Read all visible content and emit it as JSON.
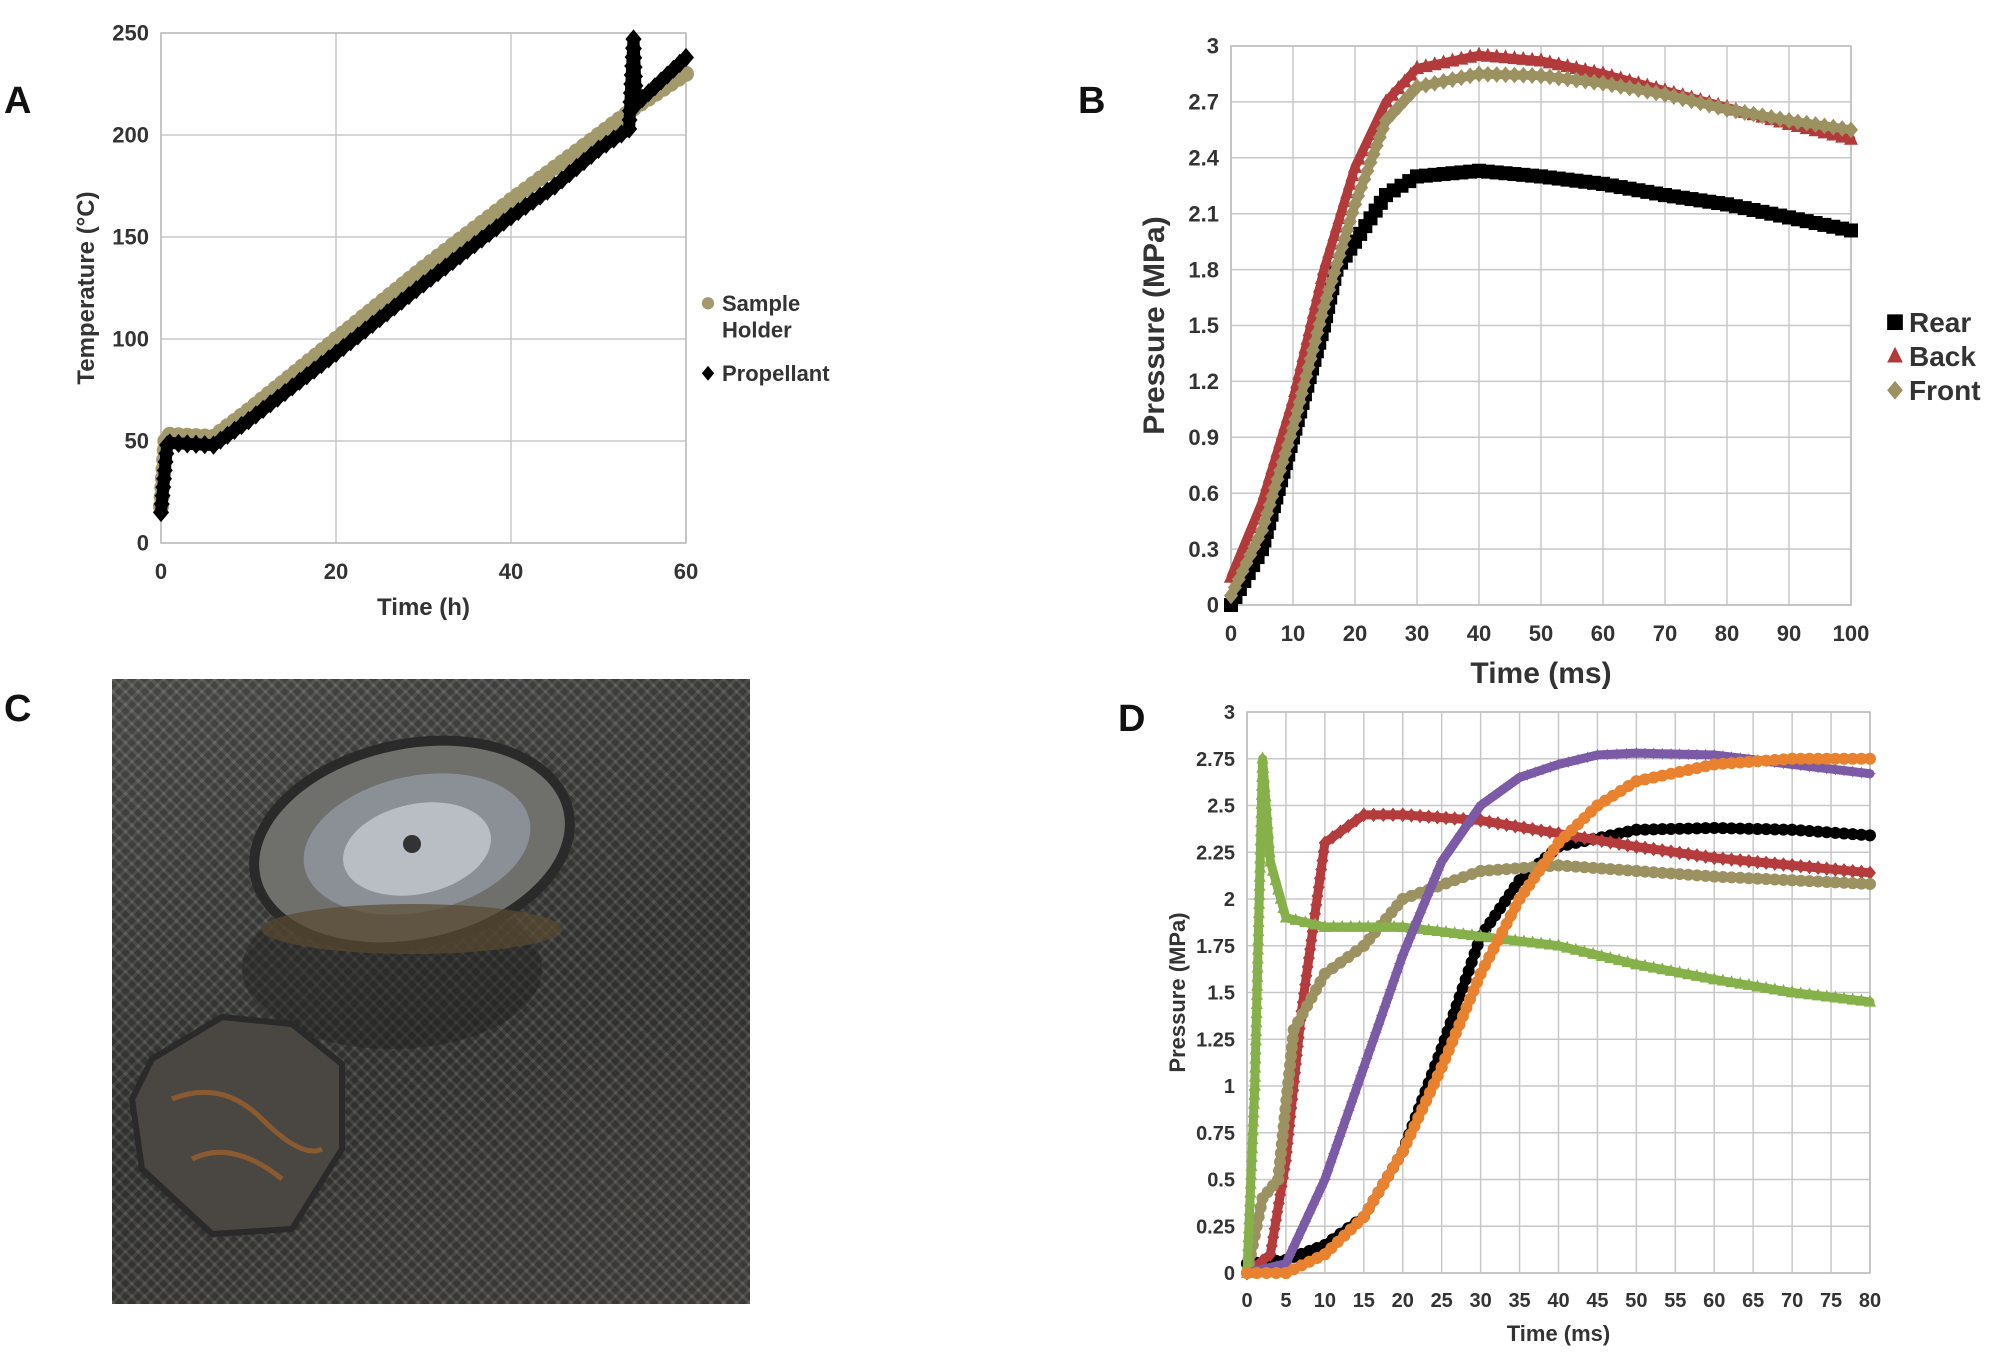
{
  "panels": {
    "a": "A",
    "b": "B",
    "c": "C",
    "d": "D"
  },
  "chart_data": [
    {
      "id": "A",
      "type": "scatter",
      "xlabel": "Time (h)",
      "ylabel": "Temperature (°C)",
      "xlim": [
        0,
        60
      ],
      "ylim": [
        0,
        250
      ],
      "xticks": [
        0,
        20,
        40,
        60
      ],
      "yticks": [
        0,
        50,
        100,
        150,
        200,
        250
      ],
      "grid": true,
      "legend": "right",
      "series": [
        {
          "name": "Sample Holder",
          "legend_lines": [
            "Sample",
            "Holder"
          ],
          "color": "#a39a6c",
          "marker": "circle",
          "points": [
            [
              0,
              18
            ],
            [
              0.5,
              50
            ],
            [
              1,
              53
            ],
            [
              6,
              52
            ],
            [
              10,
              65
            ],
            [
              20,
              100
            ],
            [
              30,
              135
            ],
            [
              40,
              168
            ],
            [
              50,
              200
            ],
            [
              54,
              213
            ],
            [
              60,
              230
            ]
          ]
        },
        {
          "name": "Propellant",
          "legend_lines": [
            "Propellant"
          ],
          "color": "#000000",
          "marker": "diamond",
          "points": [
            [
              0,
              15
            ],
            [
              0.7,
              48
            ],
            [
              1,
              49
            ],
            [
              6,
              48
            ],
            [
              10,
              60
            ],
            [
              20,
              93
            ],
            [
              30,
              127
            ],
            [
              40,
              160
            ],
            [
              45,
              175
            ],
            [
              50,
              193
            ],
            [
              53.5,
              203
            ],
            [
              54,
              247
            ],
            [
              54.3,
              215
            ],
            [
              60,
              238
            ]
          ]
        }
      ]
    },
    {
      "id": "B",
      "type": "scatter",
      "xlabel": "Time (ms)",
      "ylabel": "Pressure (MPa)",
      "xlim": [
        0,
        100
      ],
      "ylim": [
        0,
        3
      ],
      "xticks": [
        0,
        10,
        20,
        30,
        40,
        50,
        60,
        70,
        80,
        90,
        100
      ],
      "yticks": [
        0,
        0.3,
        0.6,
        0.9,
        1.2,
        1.5,
        1.8,
        2.1,
        2.4,
        2.7,
        3
      ],
      "ytick_labels": [
        "0",
        "0.3",
        "0.6",
        "0.9",
        "1.2",
        "1.5",
        "1.8",
        "2.1",
        "2.4",
        "2.7",
        "3"
      ],
      "grid": true,
      "legend": "right",
      "series": [
        {
          "name": "Rear",
          "legend_lines": [
            "Rear"
          ],
          "color": "#000000",
          "marker": "square",
          "points": [
            [
              0,
              0
            ],
            [
              5,
              0.3
            ],
            [
              10,
              0.9
            ],
            [
              15,
              1.5
            ],
            [
              17,
              1.8
            ],
            [
              20,
              1.95
            ],
            [
              25,
              2.2
            ],
            [
              30,
              2.3
            ],
            [
              40,
              2.33
            ],
            [
              50,
              2.3
            ],
            [
              60,
              2.26
            ],
            [
              70,
              2.2
            ],
            [
              80,
              2.15
            ],
            [
              90,
              2.08
            ],
            [
              100,
              2.01
            ]
          ]
        },
        {
          "name": "Back",
          "legend_lines": [
            "Back"
          ],
          "color": "#b23a3a",
          "marker": "triangle",
          "points": [
            [
              0,
              0.15
            ],
            [
              5,
              0.55
            ],
            [
              10,
              1.1
            ],
            [
              15,
              1.8
            ],
            [
              20,
              2.35
            ],
            [
              25,
              2.7
            ],
            [
              30,
              2.88
            ],
            [
              40,
              2.95
            ],
            [
              50,
              2.92
            ],
            [
              60,
              2.85
            ],
            [
              70,
              2.76
            ],
            [
              80,
              2.67
            ],
            [
              90,
              2.58
            ],
            [
              100,
              2.5
            ]
          ]
        },
        {
          "name": "Front",
          "legend_lines": [
            "Front"
          ],
          "color": "#9c9160",
          "marker": "diamond",
          "points": [
            [
              0,
              0.05
            ],
            [
              5,
              0.4
            ],
            [
              10,
              0.95
            ],
            [
              15,
              1.6
            ],
            [
              20,
              2.15
            ],
            [
              25,
              2.6
            ],
            [
              30,
              2.78
            ],
            [
              40,
              2.85
            ],
            [
              50,
              2.84
            ],
            [
              60,
              2.8
            ],
            [
              70,
              2.74
            ],
            [
              80,
              2.66
            ],
            [
              90,
              2.6
            ],
            [
              100,
              2.55
            ]
          ]
        }
      ]
    },
    {
      "id": "D",
      "type": "scatter",
      "xlabel": "Time (ms)",
      "ylabel": "Pressure (MPa)",
      "xlim": [
        0,
        80
      ],
      "ylim": [
        0,
        3
      ],
      "xticks": [
        0,
        5,
        10,
        15,
        20,
        25,
        30,
        35,
        40,
        45,
        50,
        55,
        60,
        65,
        70,
        75,
        80
      ],
      "yticks": [
        0,
        0.25,
        0.5,
        0.75,
        1,
        1.25,
        1.5,
        1.75,
        2,
        2.25,
        2.5,
        2.75,
        3
      ],
      "ytick_labels": [
        "0",
        "0.25",
        "0.5",
        "0.75",
        "1",
        "1.25",
        "1.5",
        "1.75",
        "2",
        "2.25",
        "2.5",
        "2.75",
        "3"
      ],
      "grid": true,
      "legend": "none",
      "series": [
        {
          "name": "black",
          "color": "#000000",
          "marker": "circle",
          "points": [
            [
              0,
              0.05
            ],
            [
              5,
              0.07
            ],
            [
              10,
              0.15
            ],
            [
              15,
              0.3
            ],
            [
              20,
              0.65
            ],
            [
              25,
              1.2
            ],
            [
              30,
              1.8
            ],
            [
              35,
              2.1
            ],
            [
              40,
              2.28
            ],
            [
              50,
              2.37
            ],
            [
              60,
              2.38
            ],
            [
              70,
              2.37
            ],
            [
              80,
              2.34
            ]
          ]
        },
        {
          "name": "red",
          "color": "#b43c3c",
          "marker": "diamond",
          "points": [
            [
              0,
              0
            ],
            [
              3,
              0.1
            ],
            [
              5,
              0.6
            ],
            [
              7,
              1.4
            ],
            [
              10,
              2.3
            ],
            [
              15,
              2.45
            ],
            [
              20,
              2.45
            ],
            [
              30,
              2.42
            ],
            [
              40,
              2.35
            ],
            [
              50,
              2.28
            ],
            [
              60,
              2.22
            ],
            [
              70,
              2.18
            ],
            [
              80,
              2.14
            ]
          ]
        },
        {
          "name": "olive",
          "color": "#9c9160",
          "marker": "circle",
          "points": [
            [
              0,
              0
            ],
            [
              2,
              0.4
            ],
            [
              4,
              0.5
            ],
            [
              6,
              1.3
            ],
            [
              10,
              1.6
            ],
            [
              15,
              1.75
            ],
            [
              20,
              2.0
            ],
            [
              30,
              2.15
            ],
            [
              40,
              2.18
            ],
            [
              50,
              2.15
            ],
            [
              60,
              2.12
            ],
            [
              70,
              2.1
            ],
            [
              80,
              2.08
            ]
          ]
        },
        {
          "name": "green",
          "color": "#86b04a",
          "marker": "triangle",
          "points": [
            [
              0,
              0
            ],
            [
              1,
              1.0
            ],
            [
              2,
              2.75
            ],
            [
              3,
              2.2
            ],
            [
              5,
              1.9
            ],
            [
              10,
              1.85
            ],
            [
              20,
              1.85
            ],
            [
              30,
              1.8
            ],
            [
              40,
              1.75
            ],
            [
              50,
              1.65
            ],
            [
              60,
              1.57
            ],
            [
              70,
              1.5
            ],
            [
              80,
              1.45
            ]
          ]
        },
        {
          "name": "purple",
          "color": "#7b5aa6",
          "marker": "star",
          "points": [
            [
              0,
              0
            ],
            [
              5,
              0.05
            ],
            [
              10,
              0.5
            ],
            [
              15,
              1.1
            ],
            [
              20,
              1.7
            ],
            [
              25,
              2.2
            ],
            [
              30,
              2.5
            ],
            [
              35,
              2.65
            ],
            [
              40,
              2.72
            ],
            [
              45,
              2.77
            ],
            [
              50,
              2.78
            ],
            [
              60,
              2.77
            ],
            [
              70,
              2.72
            ],
            [
              80,
              2.67
            ]
          ]
        },
        {
          "name": "orange",
          "color": "#e8822e",
          "marker": "circle",
          "points": [
            [
              0,
              0
            ],
            [
              5,
              0
            ],
            [
              10,
              0.1
            ],
            [
              15,
              0.3
            ],
            [
              20,
              0.65
            ],
            [
              25,
              1.1
            ],
            [
              30,
              1.6
            ],
            [
              35,
              2.0
            ],
            [
              40,
              2.3
            ],
            [
              45,
              2.5
            ],
            [
              50,
              2.63
            ],
            [
              60,
              2.72
            ],
            [
              70,
              2.75
            ],
            [
              80,
              2.75
            ]
          ]
        }
      ]
    }
  ]
}
